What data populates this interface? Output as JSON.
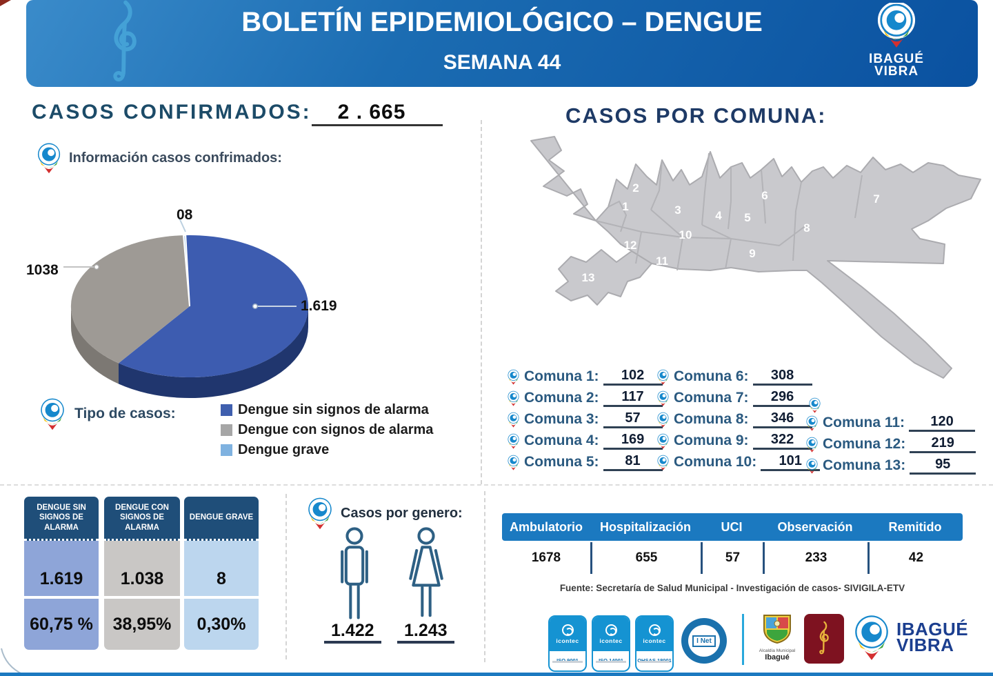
{
  "header": {
    "title": "BOLETÍN EPIDEMIOLÓGICO – DENGUE",
    "subtitle": "SEMANA 44",
    "logo_line1": "IBAGUÉ",
    "logo_line2": "VIBRA"
  },
  "confirmed": {
    "heading": "CASOS CONFIRMADOS:",
    "value": "2 . 665",
    "info_label": "Información casos confrimados:"
  },
  "chart_data": {
    "type": "pie",
    "style": "3d-pie",
    "labels": [
      "Dengue sin signos de alarma",
      "Dengue con signos de alarma",
      "Dengue grave"
    ],
    "values": [
      1619,
      1038,
      8
    ],
    "value_labels": [
      "1.619",
      "1038",
      "08"
    ],
    "percent_labels": [
      "60,75 %",
      "38,95%",
      "0,30%"
    ],
    "colors": [
      "#3d5cb0",
      "#9e9a95",
      "#aecdea"
    ],
    "wall_colors": [
      "#20366e",
      "#7c7873",
      "#9dc3e6"
    ],
    "legend_position": "bottom-left",
    "title": "Información casos confrimados"
  },
  "legend": {
    "heading": "Tipo de casos:",
    "items": [
      {
        "label": "Dengue sin signos de alarma",
        "color": "#3f5fae"
      },
      {
        "label": "Dengue con signos de alarma",
        "color": "#a6a6a6"
      },
      {
        "label": "Dengue grave",
        "color": "#7fb2e0"
      }
    ]
  },
  "comunas": {
    "heading": "CASOS POR COMUNA:",
    "items": [
      {
        "id": "1",
        "label": "Comuna 1:",
        "value": "102"
      },
      {
        "id": "2",
        "label": "Comuna 2:",
        "value": "117"
      },
      {
        "id": "3",
        "label": "Comuna 3:",
        "value": "57"
      },
      {
        "id": "4",
        "label": "Comuna 4:",
        "value": "169"
      },
      {
        "id": "5",
        "label": "Comuna 5:",
        "value": "81"
      },
      {
        "id": "6",
        "label": "Comuna 6:",
        "value": "308"
      },
      {
        "id": "7",
        "label": "Comuna 7:",
        "value": "296"
      },
      {
        "id": "8",
        "label": "Comuna 8:",
        "value": "346"
      },
      {
        "id": "9",
        "label": "Comuna 9:",
        "value": "322"
      },
      {
        "id": "10",
        "label": "Comuna 10:",
        "value": "101"
      },
      {
        "id": "11",
        "label": "Comuna 11:",
        "value": "120"
      },
      {
        "id": "12",
        "label": "Comuna 12:",
        "value": "219"
      },
      {
        "id": "13",
        "label": "Comuna 13:",
        "value": "95"
      }
    ]
  },
  "severity_table": {
    "columns": [
      {
        "header": "DENGUE SIN SIGNOS DE ALARMA",
        "value": "1.619",
        "pct": "60,75 %",
        "body_color": "#8ea5d8"
      },
      {
        "header": "DENGUE CON SIGNOS DE ALARMA",
        "value": "1.038",
        "pct": "38,95%",
        "body_color": "#c9c7c5"
      },
      {
        "header": "DENGUE GRAVE",
        "value": "8",
        "pct": "0,30%",
        "body_color": "#bcd6ee"
      }
    ]
  },
  "gender": {
    "heading": "Casos por genero:",
    "male_value": "1.422",
    "female_value": "1.243"
  },
  "care_table": {
    "headers": [
      "Ambulatorio",
      "Hospitalización",
      "UCI",
      "Observación",
      "Remitido"
    ],
    "values": [
      "1678",
      "655",
      "57",
      "233",
      "42"
    ]
  },
  "source": "Fuente: Secretaría de Salud Municipal - Investigación de  casos- SIVIGILA-ETV",
  "footer": {
    "icontec_label": "icontec",
    "icontec_subs": [
      "ISO 9001",
      "ISO 14001",
      "OHSAS 18001"
    ],
    "inet_label": "I Net",
    "alcaldia_small": "Alcaldía Municipal",
    "alcaldia_big": "Ibagué",
    "vibra_line1": "IBAGUÉ",
    "vibra_line2": "VIBRA"
  }
}
